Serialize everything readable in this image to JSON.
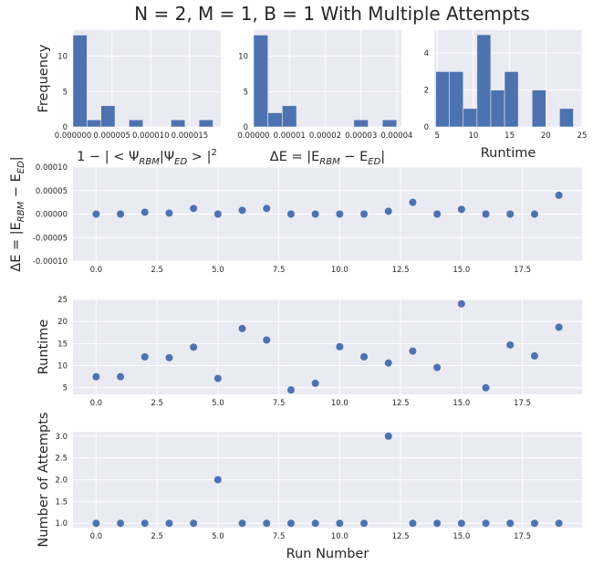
{
  "figure": {
    "title": "N = 2, M = 1, B = 1 With Multiple Attempts",
    "accent": "#4c72b0",
    "background": "#eaeaf2"
  },
  "chart_data": [
    {
      "type": "bar",
      "subtype": "histogram",
      "ylabel": "Frequency",
      "xlabel_parts": {
        "pre": "1 − | < Ψ",
        "sub1": "RBM",
        "mid": "|Ψ",
        "sub2": "ED",
        "post": " > |",
        "sup": "2"
      },
      "xlim": [
        0,
        1.9e-05
      ],
      "ylim": [
        0,
        13.7
      ],
      "xticks": [
        0,
        5e-06,
        1e-05,
        1.5e-05
      ],
      "xtick_labels": [
        "0.000000",
        "0.000005",
        "0.000010",
        "0.000015"
      ],
      "yticks": [
        0,
        5,
        10
      ],
      "ytick_labels": [
        "0",
        "5",
        "10"
      ],
      "bin_edges": [
        0,
        1.8e-06,
        3.6e-06,
        5.4e-06,
        7.2e-06,
        9e-06,
        1.08e-05,
        1.26e-05,
        1.44e-05,
        1.62e-05,
        1.8e-05
      ],
      "values": [
        13,
        1,
        3,
        0,
        1,
        0,
        0,
        1,
        0,
        1
      ]
    },
    {
      "type": "bar",
      "subtype": "histogram",
      "xlabel_parts": {
        "pre": "ΔE = |E",
        "sub1": "RBM",
        "mid": " − E",
        "sub2": "ED",
        "post": "|"
      },
      "xlim": [
        0,
        4.13e-05
      ],
      "ylim": [
        0,
        13.7
      ],
      "xticks": [
        0,
        1e-05,
        2e-05,
        3e-05,
        4e-05
      ],
      "xtick_labels": [
        "0.00000",
        "0.00001",
        "0.00002",
        "0.00003",
        "0.00004"
      ],
      "yticks": [
        0,
        5,
        10
      ],
      "ytick_labels": [
        "0",
        "5",
        "10"
      ],
      "bin_edges": [
        0,
        4e-06,
        8e-06,
        1.2e-05,
        1.6e-05,
        2e-05,
        2.4e-05,
        2.8e-05,
        3.2e-05,
        3.6e-05,
        4e-05
      ],
      "values": [
        13,
        2,
        3,
        0,
        0,
        0,
        0,
        1,
        0,
        1
      ]
    },
    {
      "type": "bar",
      "subtype": "histogram",
      "xlabel": "Runtime",
      "xlim": [
        4.6,
        25
      ],
      "ylim": [
        0,
        5.25
      ],
      "xticks": [
        5,
        10,
        15,
        20,
        25
      ],
      "xtick_labels": [
        "5",
        "10",
        "15",
        "20",
        "25"
      ],
      "yticks": [
        0,
        2,
        4
      ],
      "ytick_labels": [
        "0",
        "2",
        "4"
      ],
      "bin_edges": [
        4.8,
        6.7,
        8.6,
        10.5,
        12.4,
        14.3,
        16.2,
        18.1,
        20.0,
        21.9,
        23.8
      ],
      "values": [
        3,
        3,
        1,
        5,
        2,
        3,
        0,
        2,
        0,
        1
      ]
    },
    {
      "type": "scatter",
      "ylabel_parts": {
        "pre": "ΔE = |E",
        "sub1": "RBM",
        "mid": " − E",
        "sub2": "ED",
        "post": "|"
      },
      "xlim": [
        -0.95,
        19.95
      ],
      "ylim": [
        -0.0001,
        0.0001
      ],
      "xticks": [
        0,
        2.5,
        5,
        7.5,
        10,
        12.5,
        15,
        17.5
      ],
      "xtick_labels": [
        "0.0",
        "2.5",
        "5.0",
        "7.5",
        "10.0",
        "12.5",
        "15.0",
        "17.5"
      ],
      "yticks": [
        -0.0001,
        -5e-05,
        0,
        5e-05,
        0.0001
      ],
      "ytick_labels": [
        "-0.00010",
        "-0.00005",
        "0.00000",
        "0.00005",
        "0.00010"
      ],
      "x": [
        0,
        1,
        2,
        3,
        4,
        5,
        6,
        7,
        8,
        9,
        10,
        11,
        12,
        13,
        14,
        15,
        16,
        17,
        18,
        19
      ],
      "y": [
        0,
        0,
        4e-06,
        2e-06,
        1.2e-05,
        0,
        8e-06,
        1.2e-05,
        0,
        0,
        0,
        0,
        6e-06,
        2.5e-05,
        0,
        1e-05,
        0,
        0,
        0,
        4e-05
      ]
    },
    {
      "type": "scatter",
      "ylabel": "Runtime",
      "xlim": [
        -0.95,
        19.95
      ],
      "ylim": [
        3.5,
        25
      ],
      "xticks": [
        0,
        2.5,
        5,
        7.5,
        10,
        12.5,
        15,
        17.5
      ],
      "xtick_labels": [
        "0.0",
        "2.5",
        "5.0",
        "7.5",
        "10.0",
        "12.5",
        "15.0",
        "17.5"
      ],
      "yticks": [
        5,
        10,
        15,
        20,
        25
      ],
      "ytick_labels": [
        "5",
        "10",
        "15",
        "20",
        "25"
      ],
      "x": [
        0,
        1,
        2,
        3,
        4,
        5,
        6,
        7,
        8,
        9,
        10,
        11,
        12,
        13,
        14,
        15,
        16,
        17,
        18,
        19
      ],
      "y": [
        7.5,
        7.5,
        12.0,
        11.8,
        14.2,
        7.1,
        18.4,
        15.8,
        4.5,
        6.0,
        14.3,
        12.0,
        10.6,
        13.3,
        9.6,
        24.0,
        5.0,
        14.7,
        12.2,
        18.7
      ]
    },
    {
      "type": "scatter",
      "ylabel": "Number of Attempts",
      "xlabel": "Run Number",
      "xlim": [
        -0.95,
        19.95
      ],
      "ylim": [
        0.9,
        3.1
      ],
      "xticks": [
        0,
        2.5,
        5,
        7.5,
        10,
        12.5,
        15,
        17.5
      ],
      "xtick_labels": [
        "0.0",
        "2.5",
        "5.0",
        "7.5",
        "10.0",
        "12.5",
        "15.0",
        "17.5"
      ],
      "yticks": [
        1.0,
        1.5,
        2.0,
        2.5,
        3.0
      ],
      "ytick_labels": [
        "1.0",
        "1.5",
        "2.0",
        "2.5",
        "3.0"
      ],
      "x": [
        0,
        1,
        2,
        3,
        4,
        5,
        6,
        7,
        8,
        9,
        10,
        11,
        12,
        13,
        14,
        15,
        16,
        17,
        18,
        19
      ],
      "y": [
        1,
        1,
        1,
        1,
        1,
        2,
        1,
        1,
        1,
        1,
        1,
        1,
        3,
        1,
        1,
        1,
        1,
        1,
        1,
        1
      ]
    }
  ]
}
